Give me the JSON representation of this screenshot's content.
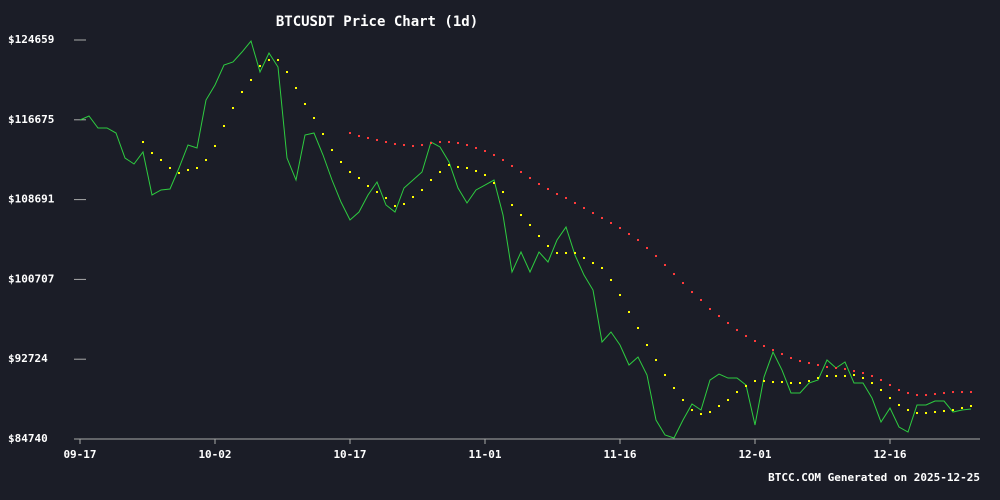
{
  "chart_data": {
    "type": "line",
    "title": "BTCUSDT Price Chart (1d)",
    "footer": "BTCC.COM Generated on 2025-12-25",
    "categories": [
      "09-17",
      null,
      null,
      null,
      null,
      null,
      null,
      null,
      null,
      null,
      null,
      null,
      null,
      null,
      null,
      "10-02",
      null,
      null,
      null,
      null,
      null,
      null,
      null,
      null,
      null,
      null,
      null,
      null,
      null,
      null,
      "10-17",
      null,
      null,
      null,
      null,
      null,
      null,
      null,
      null,
      null,
      null,
      null,
      null,
      null,
      null,
      "11-01",
      null,
      null,
      null,
      null,
      null,
      null,
      null,
      null,
      null,
      null,
      null,
      null,
      null,
      null,
      "11-16",
      null,
      null,
      null,
      null,
      null,
      null,
      null,
      null,
      null,
      null,
      null,
      null,
      null,
      null,
      "12-01",
      null,
      null,
      null,
      null,
      null,
      null,
      null,
      null,
      null,
      null,
      null,
      null,
      null,
      null,
      "12-16",
      null,
      null,
      null,
      null,
      null,
      null,
      null,
      null,
      null
    ],
    "ylim": [
      84740,
      124659
    ],
    "yticks": [
      {
        "value": 84740,
        "label": "$84740"
      },
      {
        "value": 92724,
        "label": "$92724"
      },
      {
        "value": 100707,
        "label": "$100707"
      },
      {
        "value": 108691,
        "label": "$108691"
      },
      {
        "value": 116675,
        "label": "$116675"
      },
      {
        "value": 124659,
        "label": "$124659"
      }
    ],
    "series": [
      {
        "color": "#2ecc40",
        "style": "line",
        "values": [
          116655,
          117055,
          115855,
          115855,
          115354,
          112853,
          112253,
          113454,
          109152,
          109652,
          109752,
          111853,
          114154,
          113854,
          118656,
          120157,
          122158,
          122458,
          123458,
          124559,
          121457,
          123358,
          121958,
          112853,
          110652,
          115154,
          115354,
          113153,
          110652,
          108451,
          106650,
          107450,
          109152,
          110451,
          108151,
          107450,
          109852,
          110652,
          111452,
          114454,
          113954,
          112453,
          109852,
          108351,
          109652,
          110152,
          110652,
          107150,
          101447,
          103446,
          101447,
          103446,
          102447,
          104648,
          105947,
          103146,
          101145,
          99646,
          94444,
          95444,
          94143,
          92143,
          92943,
          91142,
          86640,
          85140,
          84840,
          86640,
          88240,
          87640,
          90639,
          91240,
          90840,
          90840,
          90140,
          86140,
          90940,
          93439,
          91640,
          89340,
          89340,
          90340,
          90640,
          92643,
          91843,
          92443,
          90340,
          90340,
          88840,
          86440,
          87840,
          85940,
          85440,
          88140,
          88140,
          88540,
          88540,
          87440,
          87640,
          87740
        ]
      },
      {
        "color": "#ffff00",
        "style": "dots",
        "values": [
          null,
          null,
          null,
          null,
          null,
          null,
          null,
          114454,
          113353,
          112653,
          111853,
          111352,
          111652,
          111853,
          112653,
          114054,
          116055,
          117856,
          119456,
          120657,
          122058,
          122658,
          122658,
          121457,
          119857,
          118256,
          116855,
          115254,
          113653,
          112453,
          111452,
          110852,
          110052,
          109451,
          108851,
          108051,
          108251,
          108951,
          109651,
          110652,
          111452,
          112153,
          111953,
          111853,
          111552,
          111152,
          110352,
          109451,
          108151,
          107150,
          106150,
          105049,
          104049,
          103348,
          103348,
          103348,
          102848,
          102348,
          101848,
          100647,
          99146,
          97445,
          95845,
          94144,
          92643,
          91142,
          89842,
          88641,
          87640,
          87240,
          87440,
          88041,
          88641,
          89441,
          90042,
          90542,
          90542,
          90442,
          90442,
          90342,
          90342,
          90542,
          90842,
          91042,
          91042,
          91042,
          91142,
          90842,
          90342,
          89641,
          88841,
          88141,
          87640,
          87340,
          87340,
          87440,
          87540,
          87640,
          87841,
          88041
        ]
      },
      {
        "color": "#ff3b3b",
        "style": "dots",
        "values": [
          null,
          null,
          null,
          null,
          null,
          null,
          null,
          null,
          null,
          null,
          null,
          null,
          null,
          null,
          null,
          null,
          null,
          null,
          null,
          null,
          null,
          null,
          null,
          null,
          null,
          null,
          null,
          null,
          null,
          null,
          115354,
          115054,
          114854,
          114654,
          114454,
          114254,
          114154,
          114054,
          114154,
          114354,
          114454,
          114454,
          114354,
          114154,
          113854,
          113553,
          113153,
          112653,
          112053,
          111452,
          110852,
          110252,
          109752,
          109251,
          108851,
          108351,
          107851,
          107350,
          106850,
          106350,
          105850,
          105249,
          104649,
          103849,
          103048,
          102148,
          101247,
          100347,
          99446,
          98646,
          97746,
          97045,
          96345,
          95644,
          95044,
          94544,
          94044,
          93643,
          93243,
          92843,
          92543,
          92343,
          92143,
          91943,
          91843,
          91742,
          91542,
          91342,
          91042,
          90642,
          90142,
          89641,
          89341,
          89141,
          89141,
          89241,
          89341,
          89441,
          89441,
          89441
        ]
      }
    ]
  }
}
